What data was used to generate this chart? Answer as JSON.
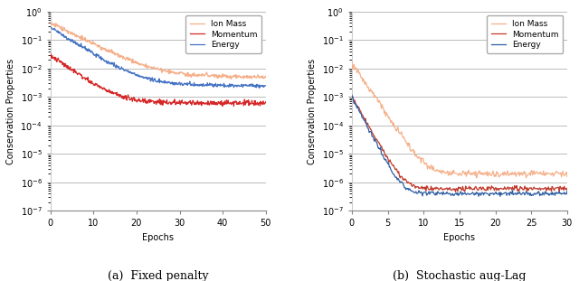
{
  "left_title": "(a)  Fixed penalty",
  "right_title": "(b)  Stochastic aug-Lag",
  "ylabel": "Conservation Properties",
  "xlabel": "Epochs",
  "legend_labels": [
    "Ion Mass",
    "Momentum",
    "Energy"
  ],
  "colors_left": [
    "#f5b08a",
    "#d62728",
    "#4472c4"
  ],
  "colors_right": [
    "#f5b08a",
    "#c0392b",
    "#2e5fa3"
  ],
  "left_xlim": [
    0,
    50
  ],
  "left_ylim": [
    1e-07,
    1.0
  ],
  "right_xlim": [
    0,
    30
  ],
  "right_ylim": [
    1e-07,
    1.0
  ],
  "left_xticks": [
    0,
    10,
    20,
    30,
    40,
    50
  ],
  "right_xticks": [
    0,
    5,
    10,
    15,
    20,
    25,
    30
  ]
}
